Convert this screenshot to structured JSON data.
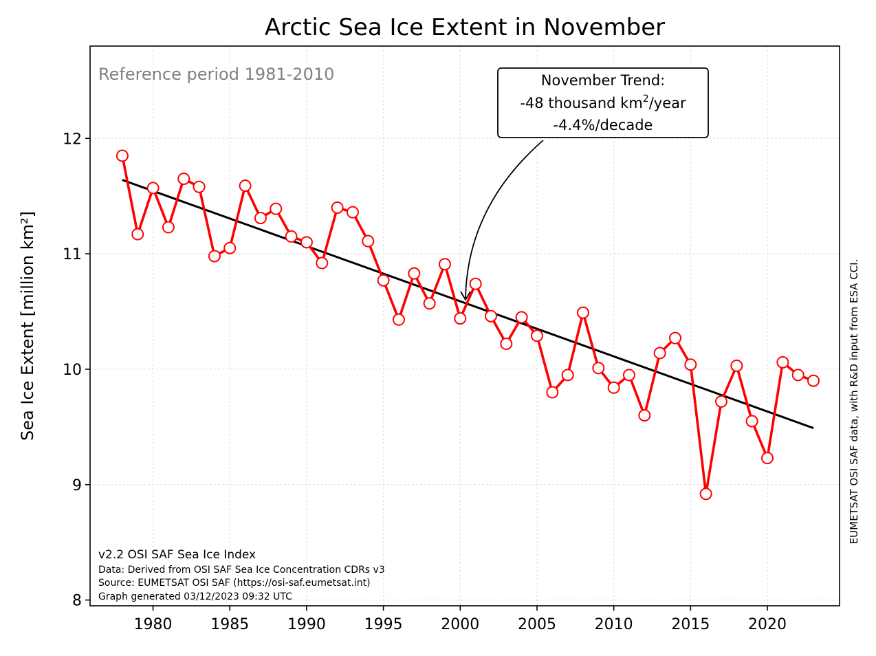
{
  "chart_data": {
    "type": "line",
    "title": "Arctic Sea Ice Extent in November",
    "xlabel": "",
    "ylabel": "Sea Ice Extent [million km²]",
    "xlim": [
      1975.9,
      2024.7
    ],
    "ylim": [
      7.95,
      12.8
    ],
    "x_ticks": [
      1980,
      1985,
      1990,
      1995,
      2000,
      2005,
      2010,
      2015,
      2020
    ],
    "y_ticks": [
      8,
      9,
      10,
      11,
      12
    ],
    "grid": true,
    "series": [
      {
        "x": [
          1978,
          1979,
          1980,
          1981,
          1982,
          1983,
          1984,
          1985,
          1986,
          1987,
          1988,
          1989,
          1990,
          1991,
          1992,
          1993,
          1994,
          1995,
          1996,
          1997,
          1998,
          1999,
          2000,
          2001,
          2002,
          2003,
          2004,
          2005,
          2006,
          2007,
          2008,
          2009,
          2010,
          2011,
          2012,
          2013,
          2014,
          2015,
          2016,
          2017,
          2018,
          2019,
          2020,
          2021,
          2022,
          2023
        ],
        "values": [
          11.85,
          11.17,
          11.57,
          11.23,
          11.65,
          11.58,
          10.98,
          11.05,
          11.59,
          11.31,
          11.39,
          11.15,
          11.1,
          10.92,
          11.4,
          11.36,
          11.11,
          10.77,
          10.43,
          10.83,
          10.57,
          10.91,
          10.44,
          10.74,
          10.46,
          10.22,
          10.45,
          10.29,
          9.8,
          9.95,
          10.49,
          10.01,
          9.84,
          9.95,
          9.6,
          10.14,
          10.27,
          10.04,
          8.92,
          9.72,
          10.03,
          9.55,
          9.23,
          10.06,
          9.95,
          9.9
        ],
        "color": "#ff0000"
      }
    ],
    "trend_line": {
      "x": [
        1978,
        2023
      ],
      "values": [
        11.64,
        9.49
      ],
      "color": "#000000"
    },
    "annotations": {
      "reference_period": "Reference period 1981-2010",
      "trend_box": {
        "line1": "November Trend:",
        "line2_prefix": "-48 thousand km",
        "line2_sup": "2",
        "line2_suffix": "/year",
        "line3": "-4.4%/decade",
        "arrow_target": {
          "x": 2000.4,
          "y": 10.6
        }
      },
      "footnotes": [
        "v2.2 OSI SAF Sea Ice Index",
        "Data: Derived from OSI SAF Sea Ice Concentration CDRs v3",
        "Source: EUMETSAT OSI SAF (https://osi-saf.eumetsat.int)",
        "Graph generated 03/12/2023 09:32 UTC"
      ],
      "credit": "EUMETSAT OSI SAF data, with R&D input from ESA CCI."
    }
  }
}
